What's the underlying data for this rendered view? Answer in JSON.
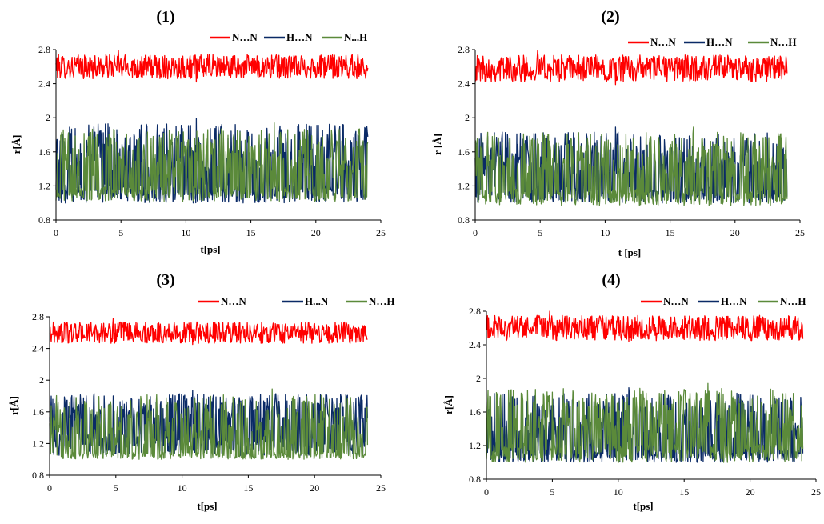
{
  "chart_data": [
    {
      "type": "line",
      "title": "(1)",
      "xlabel": "t[ps]",
      "ylabel": "r[Å]",
      "xlim": [
        0,
        25
      ],
      "ylim": [
        0.8,
        2.8
      ],
      "xticks": [
        "0",
        "5",
        "10",
        "15",
        "20",
        "25"
      ],
      "yticks": [
        "0.8",
        "1.2",
        "1.6",
        "2",
        "2.4",
        "2.8"
      ],
      "t_max": 24,
      "legend_position": "top-right",
      "series": [
        {
          "name": "N…N",
          "color": "#ff0000",
          "mean": 2.6,
          "min": 2.42,
          "max": 2.79
        },
        {
          "name": "H…N",
          "color": "#0a2a66",
          "mean": 1.38,
          "min": 1.0,
          "max": 1.99
        },
        {
          "name": "N...H",
          "color": "#5b8a3a",
          "mean": 1.3,
          "min": 1.02,
          "max": 1.94
        }
      ]
    },
    {
      "type": "line",
      "title": "(2)",
      "xlabel": "t [ps]",
      "ylabel": "r [Å]",
      "xlim": [
        0,
        25
      ],
      "ylim": [
        0.8,
        2.8
      ],
      "xticks": [
        "0",
        "5",
        "10",
        "15",
        "20",
        "25"
      ],
      "yticks": [
        "0.8",
        "1.2",
        "1.6",
        "2",
        "2.4",
        "2.8"
      ],
      "t_max": 24,
      "legend_position": "top-right",
      "series": [
        {
          "name": "N…N",
          "color": "#ff0000",
          "mean": 2.58,
          "min": 2.39,
          "max": 2.79
        },
        {
          "name": "H…N",
          "color": "#0a2a66",
          "mean": 1.32,
          "min": 1.0,
          "max": 1.89
        },
        {
          "name": "N…H",
          "color": "#5b8a3a",
          "mean": 1.3,
          "min": 0.97,
          "max": 1.89
        }
      ]
    },
    {
      "type": "line",
      "title": "(3)",
      "xlabel": "t[ps]",
      "ylabel": "r[Å]",
      "xlim": [
        0,
        25
      ],
      "ylim": [
        0.8,
        2.8
      ],
      "xticks": [
        "0",
        "5",
        "10",
        "15",
        "20",
        "25"
      ],
      "yticks": [
        "0.8",
        "1.2",
        "1.6",
        "2",
        "2.4",
        "2.8"
      ],
      "t_max": 24,
      "legend_position": "top-right",
      "series": [
        {
          "name": "N…N",
          "color": "#ff0000",
          "mean": 2.6,
          "min": 2.45,
          "max": 2.78
        },
        {
          "name": "H...N",
          "color": "#0a2a66",
          "mean": 1.5,
          "min": 1.05,
          "max": 1.87
        },
        {
          "name": "N…H",
          "color": "#5b8a3a",
          "mean": 1.15,
          "min": 1.0,
          "max": 1.89
        }
      ]
    },
    {
      "type": "line",
      "title": "(4)",
      "xlabel": "t[ps]",
      "ylabel": "r[Å]",
      "xlim": [
        0,
        25
      ],
      "ylim": [
        0.8,
        2.8
      ],
      "xticks": [
        "0",
        "5",
        "10",
        "15",
        "20",
        "25"
      ],
      "yticks": [
        "0.8",
        "1.2",
        "1.6",
        "2",
        "2.4",
        "2.8"
      ],
      "t_max": 24,
      "legend_position": "top-right",
      "series": [
        {
          "name": "N…N",
          "color": "#ff0000",
          "mean": 2.6,
          "min": 2.44,
          "max": 2.8
        },
        {
          "name": "H…N",
          "color": "#0a2a66",
          "mean": 1.25,
          "min": 1.0,
          "max": 1.89
        },
        {
          "name": "N…H",
          "color": "#5b8a3a",
          "mean": 1.38,
          "min": 1.0,
          "max": 1.94
        }
      ]
    }
  ]
}
